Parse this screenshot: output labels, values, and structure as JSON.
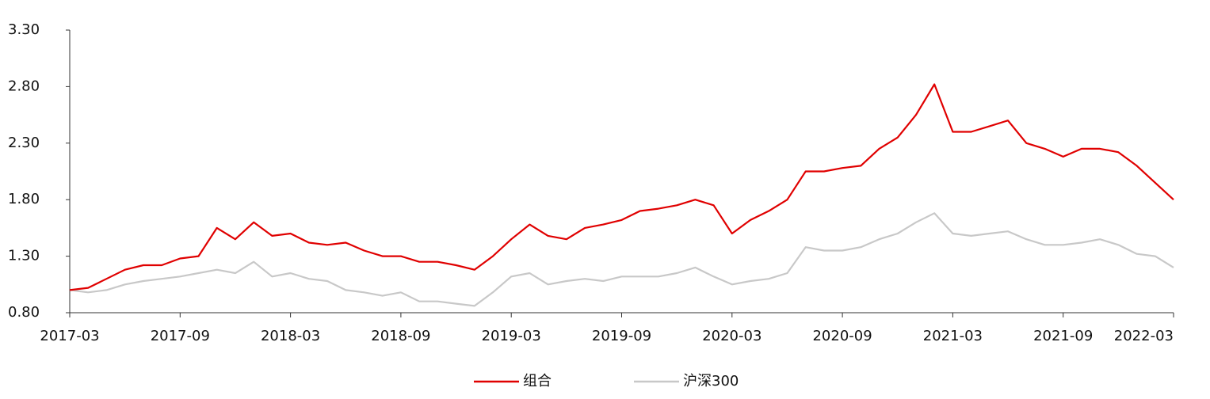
{
  "chart_data": {
    "type": "line",
    "x": [
      "2017-03",
      "2017-04",
      "2017-05",
      "2017-06",
      "2017-07",
      "2017-08",
      "2017-09",
      "2017-10",
      "2017-11",
      "2017-12",
      "2018-01",
      "2018-02",
      "2018-03",
      "2018-04",
      "2018-05",
      "2018-06",
      "2018-07",
      "2018-08",
      "2018-09",
      "2018-10",
      "2018-11",
      "2018-12",
      "2019-01",
      "2019-02",
      "2019-03",
      "2019-04",
      "2019-05",
      "2019-06",
      "2019-07",
      "2019-08",
      "2019-09",
      "2019-10",
      "2019-11",
      "2019-12",
      "2020-01",
      "2020-02",
      "2020-03",
      "2020-04",
      "2020-05",
      "2020-06",
      "2020-07",
      "2020-08",
      "2020-09",
      "2020-10",
      "2020-11",
      "2020-12",
      "2021-01",
      "2021-02",
      "2021-03",
      "2021-04",
      "2021-05",
      "2021-06",
      "2021-07",
      "2021-08",
      "2021-09",
      "2021-10",
      "2021-11",
      "2021-12",
      "2022-01",
      "2022-02",
      "2022-03"
    ],
    "series": [
      {
        "name": "组合",
        "color": "#e00000",
        "values": [
          1.0,
          1.02,
          1.1,
          1.18,
          1.22,
          1.22,
          1.28,
          1.3,
          1.55,
          1.45,
          1.6,
          1.48,
          1.5,
          1.42,
          1.4,
          1.42,
          1.35,
          1.3,
          1.3,
          1.25,
          1.25,
          1.22,
          1.18,
          1.3,
          1.45,
          1.58,
          1.48,
          1.45,
          1.55,
          1.58,
          1.62,
          1.7,
          1.72,
          1.75,
          1.8,
          1.75,
          1.5,
          1.62,
          1.7,
          1.8,
          2.05,
          2.05,
          2.08,
          2.1,
          2.25,
          2.35,
          2.55,
          2.82,
          2.4,
          2.4,
          2.45,
          2.5,
          2.3,
          2.25,
          2.18,
          2.25,
          2.25,
          2.22,
          2.1,
          1.95,
          1.8
        ]
      },
      {
        "name": "沪深300",
        "color": "#c8c8c8",
        "values": [
          1.0,
          0.98,
          1.0,
          1.05,
          1.08,
          1.1,
          1.12,
          1.15,
          1.18,
          1.15,
          1.25,
          1.12,
          1.15,
          1.1,
          1.08,
          1.0,
          0.98,
          0.95,
          0.98,
          0.9,
          0.9,
          0.88,
          0.86,
          0.98,
          1.12,
          1.15,
          1.05,
          1.08,
          1.1,
          1.08,
          1.12,
          1.12,
          1.12,
          1.15,
          1.2,
          1.12,
          1.05,
          1.08,
          1.1,
          1.15,
          1.38,
          1.35,
          1.35,
          1.38,
          1.45,
          1.5,
          1.6,
          1.68,
          1.5,
          1.48,
          1.5,
          1.52,
          1.45,
          1.4,
          1.4,
          1.42,
          1.45,
          1.4,
          1.32,
          1.3,
          1.2
        ]
      }
    ],
    "xlim": [
      "2017-03",
      "2022-03"
    ],
    "xticks": [
      "2017-03",
      "2017-09",
      "2018-03",
      "2018-09",
      "2019-03",
      "2019-09",
      "2020-03",
      "2020-09",
      "2021-03",
      "2021-09",
      "2022-03"
    ],
    "ylim": [
      0.8,
      3.3
    ],
    "yticks": [
      {
        "value": 0.8,
        "label": "0.80"
      },
      {
        "value": 1.3,
        "label": "1.30"
      },
      {
        "value": 1.8,
        "label": "1.80"
      },
      {
        "value": 2.3,
        "label": "2.30"
      },
      {
        "value": 2.8,
        "label": "2.80"
      },
      {
        "value": 3.3,
        "label": "3.30"
      }
    ],
    "grid": false,
    "legend": "bottom"
  }
}
